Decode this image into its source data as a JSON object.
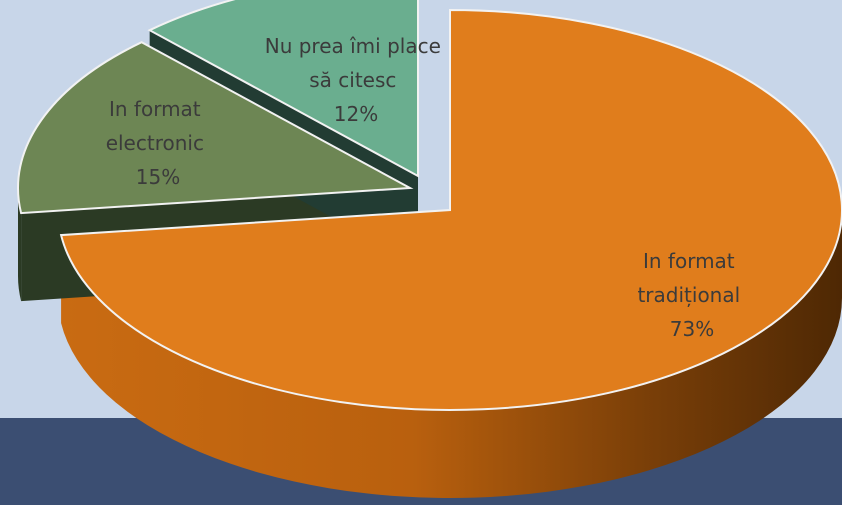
{
  "chart_data": {
    "type": "pie",
    "title": "",
    "legend": "none",
    "slices": [
      {
        "label_lines": [
          "In format",
          "tradițional"
        ],
        "value": 73,
        "value_label": "73%",
        "color": "#e07d1c"
      },
      {
        "label_lines": [
          "In format",
          "electronic"
        ],
        "value": 15,
        "value_label": "15%",
        "color": "#6d8654"
      },
      {
        "label_lines": [
          "Nu prea îmi place",
          "să citesc"
        ],
        "value": 12,
        "value_label": "12%",
        "color": "#6aae8f"
      }
    ]
  },
  "colors": {
    "background": "#c8d6e9",
    "band": "#3b4e72"
  }
}
